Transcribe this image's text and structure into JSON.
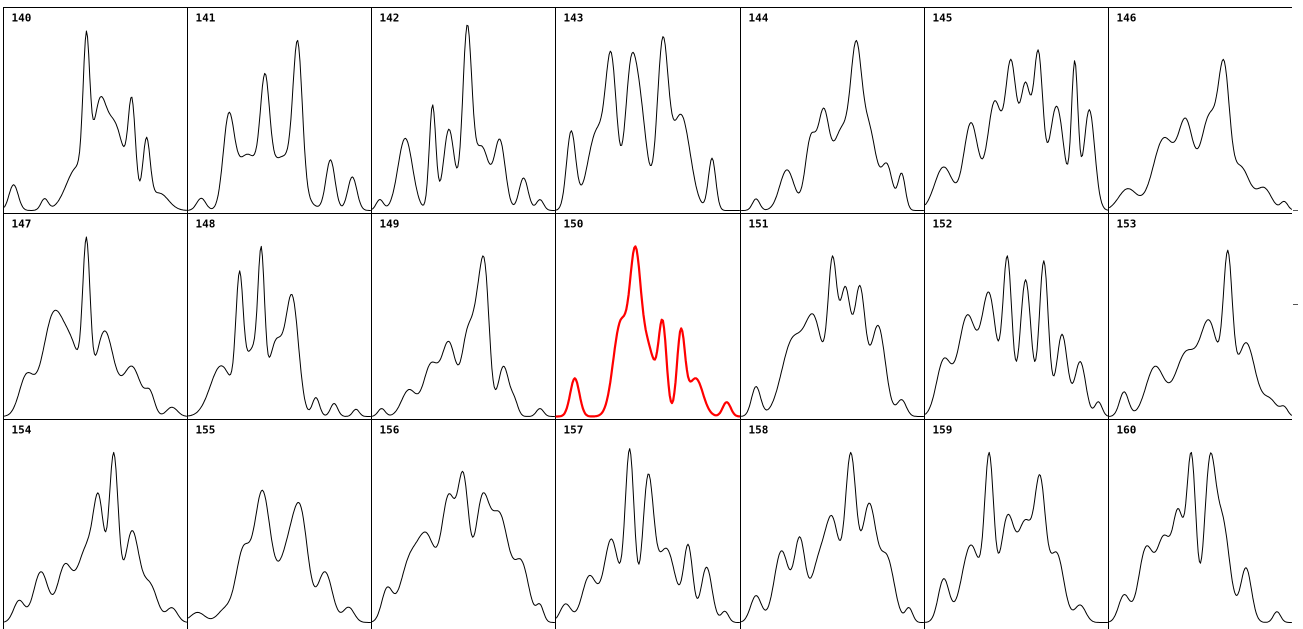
{
  "chart_data": {
    "type": "line",
    "layout": {
      "rows": 3,
      "columns": 7
    },
    "highlight_color": "#ff0000",
    "line_color": "#000000",
    "highlighted_panel": "150",
    "ylim": [
      0,
      1
    ],
    "panels": [
      {
        "label": "140",
        "peaks": [
          [
            0.05,
            0.18,
            0.025
          ],
          [
            0.22,
            0.08,
            0.02
          ],
          [
            0.4,
            0.3,
            0.06
          ],
          [
            0.45,
            0.95,
            0.018
          ],
          [
            0.52,
            0.55,
            0.035
          ],
          [
            0.7,
            0.63,
            0.02
          ],
          [
            0.6,
            0.4,
            0.05
          ],
          [
            0.78,
            0.45,
            0.02
          ],
          [
            0.62,
            0.2,
            0.07
          ],
          [
            0.85,
            0.12,
            0.05
          ]
        ]
      },
      {
        "label": "141",
        "peaks": [
          [
            0.07,
            0.08,
            0.025
          ],
          [
            0.22,
            0.55,
            0.03
          ],
          [
            0.32,
            0.35,
            0.06
          ],
          [
            0.42,
            0.65,
            0.025
          ],
          [
            0.6,
            0.9,
            0.025
          ],
          [
            0.52,
            0.35,
            0.08
          ],
          [
            0.78,
            0.33,
            0.025
          ],
          [
            0.9,
            0.22,
            0.025
          ]
        ]
      },
      {
        "label": "142",
        "peaks": [
          [
            0.04,
            0.06,
            0.02
          ],
          [
            0.18,
            0.4,
            0.04
          ],
          [
            0.33,
            0.58,
            0.018
          ],
          [
            0.42,
            0.45,
            0.03
          ],
          [
            0.52,
            0.98,
            0.025
          ],
          [
            0.6,
            0.35,
            0.04
          ],
          [
            0.7,
            0.38,
            0.03
          ],
          [
            0.83,
            0.18,
            0.025
          ],
          [
            0.92,
            0.06,
            0.02
          ]
        ]
      },
      {
        "label": "143",
        "peaks": [
          [
            0.08,
            0.45,
            0.025
          ],
          [
            0.22,
            0.45,
            0.05
          ],
          [
            0.3,
            0.78,
            0.03
          ],
          [
            0.4,
            0.55,
            0.03
          ],
          [
            0.45,
            0.62,
            0.04
          ],
          [
            0.58,
            0.92,
            0.03
          ],
          [
            0.68,
            0.55,
            0.05
          ],
          [
            0.85,
            0.3,
            0.02
          ]
        ]
      },
      {
        "label": "144",
        "peaks": [
          [
            0.08,
            0.08,
            0.02
          ],
          [
            0.25,
            0.28,
            0.04
          ],
          [
            0.38,
            0.48,
            0.03
          ],
          [
            0.45,
            0.6,
            0.03
          ],
          [
            0.55,
            0.55,
            0.05
          ],
          [
            0.63,
            0.9,
            0.03
          ],
          [
            0.7,
            0.55,
            0.04
          ],
          [
            0.8,
            0.3,
            0.03
          ],
          [
            0.88,
            0.25,
            0.02
          ]
        ]
      },
      {
        "label": "145",
        "peaks": [
          [
            0.1,
            0.25,
            0.05
          ],
          [
            0.25,
            0.5,
            0.04
          ],
          [
            0.38,
            0.62,
            0.04
          ],
          [
            0.47,
            0.8,
            0.03
          ],
          [
            0.55,
            0.7,
            0.03
          ],
          [
            0.62,
            0.85,
            0.025
          ],
          [
            0.72,
            0.6,
            0.04
          ],
          [
            0.82,
            0.82,
            0.018
          ],
          [
            0.9,
            0.58,
            0.03
          ]
        ]
      },
      {
        "label": "146",
        "peaks": [
          [
            0.1,
            0.15,
            0.05
          ],
          [
            0.3,
            0.5,
            0.06
          ],
          [
            0.42,
            0.55,
            0.04
          ],
          [
            0.55,
            0.65,
            0.05
          ],
          [
            0.63,
            0.8,
            0.03
          ],
          [
            0.72,
            0.3,
            0.05
          ],
          [
            0.85,
            0.15,
            0.04
          ],
          [
            0.96,
            0.06,
            0.02
          ]
        ]
      },
      {
        "label": "147",
        "peaks": [
          [
            0.12,
            0.25,
            0.04
          ],
          [
            0.27,
            0.65,
            0.06
          ],
          [
            0.38,
            0.35,
            0.05
          ],
          [
            0.45,
            0.95,
            0.02
          ],
          [
            0.55,
            0.55,
            0.05
          ],
          [
            0.7,
            0.32,
            0.05
          ],
          [
            0.8,
            0.13,
            0.025
          ],
          [
            0.92,
            0.06,
            0.03
          ]
        ]
      },
      {
        "label": "148",
        "peaks": [
          [
            0.18,
            0.35,
            0.06
          ],
          [
            0.28,
            0.82,
            0.02
          ],
          [
            0.35,
            0.45,
            0.04
          ],
          [
            0.4,
            0.9,
            0.018
          ],
          [
            0.48,
            0.5,
            0.04
          ],
          [
            0.57,
            0.8,
            0.035
          ],
          [
            0.7,
            0.13,
            0.02
          ],
          [
            0.8,
            0.09,
            0.02
          ],
          [
            0.92,
            0.05,
            0.018
          ]
        ]
      },
      {
        "label": "149",
        "peaks": [
          [
            0.05,
            0.06,
            0.02
          ],
          [
            0.2,
            0.2,
            0.04
          ],
          [
            0.32,
            0.38,
            0.04
          ],
          [
            0.42,
            0.55,
            0.04
          ],
          [
            0.52,
            0.55,
            0.03
          ],
          [
            0.58,
            0.7,
            0.03
          ],
          [
            0.62,
            0.85,
            0.025
          ],
          [
            0.72,
            0.38,
            0.03
          ],
          [
            0.78,
            0.1,
            0.02
          ],
          [
            0.92,
            0.06,
            0.02
          ]
        ]
      },
      {
        "label": "150",
        "peaks": [
          [
            0.1,
            0.24,
            0.025
          ],
          [
            0.35,
            0.58,
            0.04
          ],
          [
            0.43,
            0.9,
            0.03
          ],
          [
            0.5,
            0.42,
            0.04
          ],
          [
            0.58,
            0.55,
            0.022
          ],
          [
            0.68,
            0.52,
            0.022
          ],
          [
            0.76,
            0.24,
            0.04
          ],
          [
            0.93,
            0.09,
            0.022
          ]
        ]
      },
      {
        "label": "151",
        "peaks": [
          [
            0.08,
            0.18,
            0.025
          ],
          [
            0.28,
            0.45,
            0.06
          ],
          [
            0.4,
            0.55,
            0.05
          ],
          [
            0.5,
            0.85,
            0.025
          ],
          [
            0.57,
            0.75,
            0.03
          ],
          [
            0.65,
            0.75,
            0.03
          ],
          [
            0.75,
            0.55,
            0.04
          ],
          [
            0.88,
            0.1,
            0.025
          ]
        ]
      },
      {
        "label": "152",
        "peaks": [
          [
            0.1,
            0.3,
            0.04
          ],
          [
            0.23,
            0.55,
            0.05
          ],
          [
            0.35,
            0.65,
            0.04
          ],
          [
            0.45,
            0.85,
            0.025
          ],
          [
            0.55,
            0.75,
            0.03
          ],
          [
            0.65,
            0.85,
            0.025
          ],
          [
            0.75,
            0.45,
            0.03
          ],
          [
            0.85,
            0.3,
            0.03
          ],
          [
            0.95,
            0.08,
            0.02
          ]
        ]
      },
      {
        "label": "153",
        "peaks": [
          [
            0.08,
            0.15,
            0.025
          ],
          [
            0.25,
            0.3,
            0.05
          ],
          [
            0.42,
            0.38,
            0.06
          ],
          [
            0.55,
            0.55,
            0.05
          ],
          [
            0.65,
            0.88,
            0.025
          ],
          [
            0.75,
            0.45,
            0.05
          ],
          [
            0.88,
            0.1,
            0.04
          ],
          [
            0.96,
            0.05,
            0.02
          ]
        ]
      },
      {
        "label": "154",
        "peaks": [
          [
            0.08,
            0.12,
            0.03
          ],
          [
            0.2,
            0.28,
            0.04
          ],
          [
            0.33,
            0.3,
            0.04
          ],
          [
            0.45,
            0.4,
            0.05
          ],
          [
            0.52,
            0.55,
            0.03
          ],
          [
            0.6,
            0.9,
            0.025
          ],
          [
            0.7,
            0.5,
            0.04
          ],
          [
            0.8,
            0.2,
            0.04
          ],
          [
            0.92,
            0.08,
            0.03
          ]
        ]
      },
      {
        "label": "155",
        "peaks": [
          [
            0.05,
            0.08,
            0.04
          ],
          [
            0.2,
            0.1,
            0.04
          ],
          [
            0.3,
            0.55,
            0.04
          ],
          [
            0.4,
            0.6,
            0.04
          ],
          [
            0.42,
            0.45,
            0.05
          ],
          [
            0.55,
            0.55,
            0.05
          ],
          [
            0.62,
            0.7,
            0.04
          ],
          [
            0.75,
            0.4,
            0.04
          ],
          [
            0.88,
            0.12,
            0.03
          ]
        ]
      },
      {
        "label": "156",
        "peaks": [
          [
            0.08,
            0.2,
            0.03
          ],
          [
            0.2,
            0.35,
            0.05
          ],
          [
            0.3,
            0.5,
            0.05
          ],
          [
            0.42,
            0.75,
            0.04
          ],
          [
            0.5,
            0.8,
            0.03
          ],
          [
            0.6,
            0.7,
            0.04
          ],
          [
            0.7,
            0.65,
            0.05
          ],
          [
            0.82,
            0.35,
            0.04
          ],
          [
            0.92,
            0.1,
            0.02
          ]
        ]
      },
      {
        "label": "157",
        "peaks": [
          [
            0.05,
            0.1,
            0.03
          ],
          [
            0.18,
            0.25,
            0.04
          ],
          [
            0.3,
            0.45,
            0.04
          ],
          [
            0.4,
            0.92,
            0.025
          ],
          [
            0.5,
            0.75,
            0.03
          ],
          [
            0.6,
            0.4,
            0.05
          ],
          [
            0.72,
            0.4,
            0.025
          ],
          [
            0.82,
            0.3,
            0.03
          ],
          [
            0.92,
            0.06,
            0.02
          ]
        ]
      },
      {
        "label": "158",
        "peaks": [
          [
            0.08,
            0.15,
            0.03
          ],
          [
            0.22,
            0.4,
            0.04
          ],
          [
            0.32,
            0.45,
            0.03
          ],
          [
            0.42,
            0.3,
            0.04
          ],
          [
            0.5,
            0.55,
            0.04
          ],
          [
            0.6,
            0.9,
            0.03
          ],
          [
            0.7,
            0.65,
            0.04
          ],
          [
            0.8,
            0.35,
            0.04
          ],
          [
            0.92,
            0.08,
            0.02
          ]
        ]
      },
      {
        "label": "159",
        "peaks": [
          [
            0.1,
            0.25,
            0.03
          ],
          [
            0.25,
            0.45,
            0.05
          ],
          [
            0.35,
            0.9,
            0.025
          ],
          [
            0.45,
            0.6,
            0.04
          ],
          [
            0.55,
            0.55,
            0.04
          ],
          [
            0.63,
            0.75,
            0.03
          ],
          [
            0.72,
            0.4,
            0.04
          ],
          [
            0.85,
            0.1,
            0.03
          ]
        ]
      },
      {
        "label": "160",
        "peaks": [
          [
            0.08,
            0.15,
            0.03
          ],
          [
            0.2,
            0.4,
            0.04
          ],
          [
            0.3,
            0.45,
            0.04
          ],
          [
            0.38,
            0.55,
            0.03
          ],
          [
            0.45,
            0.9,
            0.025
          ],
          [
            0.55,
            0.8,
            0.03
          ],
          [
            0.62,
            0.55,
            0.04
          ],
          [
            0.75,
            0.3,
            0.03
          ],
          [
            0.92,
            0.06,
            0.02
          ]
        ]
      }
    ]
  }
}
